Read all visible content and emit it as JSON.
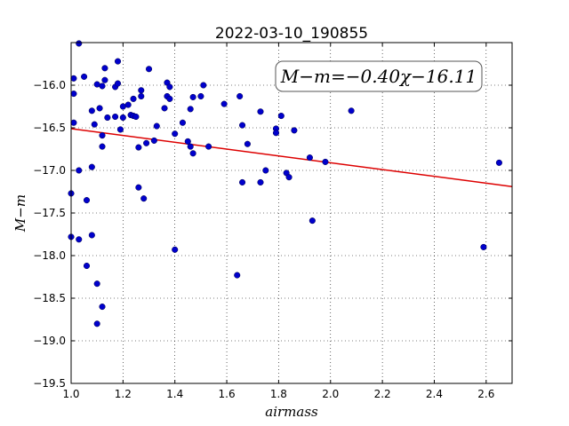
{
  "chart_data": {
    "type": "scatter",
    "title": "2022-03-10_190855",
    "xlabel": "airmass",
    "ylabel": "M−m",
    "xlim": [
      1.0,
      2.7
    ],
    "ylim": [
      -19.5,
      -15.5
    ],
    "y_inverted": true,
    "grid": true,
    "x_ticks": [
      1.0,
      1.2,
      1.4,
      1.6,
      1.8,
      2.0,
      2.2,
      2.4,
      2.6
    ],
    "x_tick_labels": [
      "1.0",
      "1.2",
      "1.4",
      "1.6",
      "1.8",
      "2.0",
      "2.2",
      "2.4",
      "2.6"
    ],
    "y_ticks": [
      -16.0,
      -16.5,
      -17.0,
      -17.5,
      -18.0,
      -18.5,
      -19.0,
      -19.5
    ],
    "y_tick_labels": [
      "−16.0",
      "−16.5",
      "−17.0",
      "−17.5",
      "−18.0",
      "−18.5",
      "−19.0",
      "−19.5"
    ],
    "annotation": "M−m=−0.40χ−16.11",
    "fit": {
      "slope": -0.4,
      "intercept": -16.11,
      "color": "#dd0000"
    },
    "point_color": "#0000cc",
    "points": [
      [
        1.0,
        -17.27
      ],
      [
        1.0,
        -17.78
      ],
      [
        1.01,
        -16.1
      ],
      [
        1.01,
        -16.44
      ],
      [
        1.01,
        -15.92
      ],
      [
        1.03,
        -15.51
      ],
      [
        1.03,
        -17.0
      ],
      [
        1.03,
        -17.81
      ],
      [
        1.05,
        -15.9
      ],
      [
        1.06,
        -17.35
      ],
      [
        1.06,
        -18.12
      ],
      [
        1.08,
        -17.76
      ],
      [
        1.08,
        -16.3
      ],
      [
        1.08,
        -16.96
      ],
      [
        1.09,
        -16.46
      ],
      [
        1.1,
        -15.99
      ],
      [
        1.1,
        -18.33
      ],
      [
        1.1,
        -18.8
      ],
      [
        1.11,
        -16.27
      ],
      [
        1.12,
        -16.59
      ],
      [
        1.12,
        -16.72
      ],
      [
        1.12,
        -16.01
      ],
      [
        1.12,
        -18.6
      ],
      [
        1.13,
        -15.94
      ],
      [
        1.13,
        -15.8
      ],
      [
        1.14,
        -16.38
      ],
      [
        1.17,
        -16.37
      ],
      [
        1.17,
        -16.02
      ],
      [
        1.18,
        -15.98
      ],
      [
        1.18,
        -15.72
      ],
      [
        1.19,
        -16.52
      ],
      [
        1.2,
        -16.38
      ],
      [
        1.2,
        -16.25
      ],
      [
        1.22,
        -16.23
      ],
      [
        1.23,
        -16.35
      ],
      [
        1.24,
        -16.36
      ],
      [
        1.24,
        -16.16
      ],
      [
        1.25,
        -16.37
      ],
      [
        1.26,
        -16.73
      ],
      [
        1.26,
        -17.2
      ],
      [
        1.27,
        -16.06
      ],
      [
        1.27,
        -16.13
      ],
      [
        1.28,
        -17.33
      ],
      [
        1.29,
        -16.68
      ],
      [
        1.3,
        -15.81
      ],
      [
        1.32,
        -16.65
      ],
      [
        1.33,
        -16.48
      ],
      [
        1.36,
        -16.27
      ],
      [
        1.37,
        -16.13
      ],
      [
        1.37,
        -15.97
      ],
      [
        1.38,
        -16.02
      ],
      [
        1.38,
        -16.16
      ],
      [
        1.4,
        -17.93
      ],
      [
        1.4,
        -16.57
      ],
      [
        1.43,
        -16.44
      ],
      [
        1.45,
        -16.66
      ],
      [
        1.46,
        -16.72
      ],
      [
        1.46,
        -16.28
      ],
      [
        1.47,
        -16.14
      ],
      [
        1.47,
        -16.8
      ],
      [
        1.5,
        -16.13
      ],
      [
        1.51,
        -16.0
      ],
      [
        1.53,
        -16.72
      ],
      [
        1.59,
        -16.22
      ],
      [
        1.64,
        -18.23
      ],
      [
        1.65,
        -16.13
      ],
      [
        1.66,
        -16.47
      ],
      [
        1.66,
        -17.14
      ],
      [
        1.68,
        -16.69
      ],
      [
        1.73,
        -16.31
      ],
      [
        1.73,
        -17.14
      ],
      [
        1.75,
        -17.0
      ],
      [
        1.79,
        -16.51
      ],
      [
        1.79,
        -16.56
      ],
      [
        1.81,
        -16.36
      ],
      [
        1.83,
        -17.03
      ],
      [
        1.84,
        -17.08
      ],
      [
        1.86,
        -16.53
      ],
      [
        1.92,
        -16.85
      ],
      [
        1.93,
        -17.59
      ],
      [
        1.98,
        -16.9
      ],
      [
        2.08,
        -16.3
      ],
      [
        2.59,
        -17.9
      ],
      [
        2.65,
        -16.91
      ]
    ]
  }
}
